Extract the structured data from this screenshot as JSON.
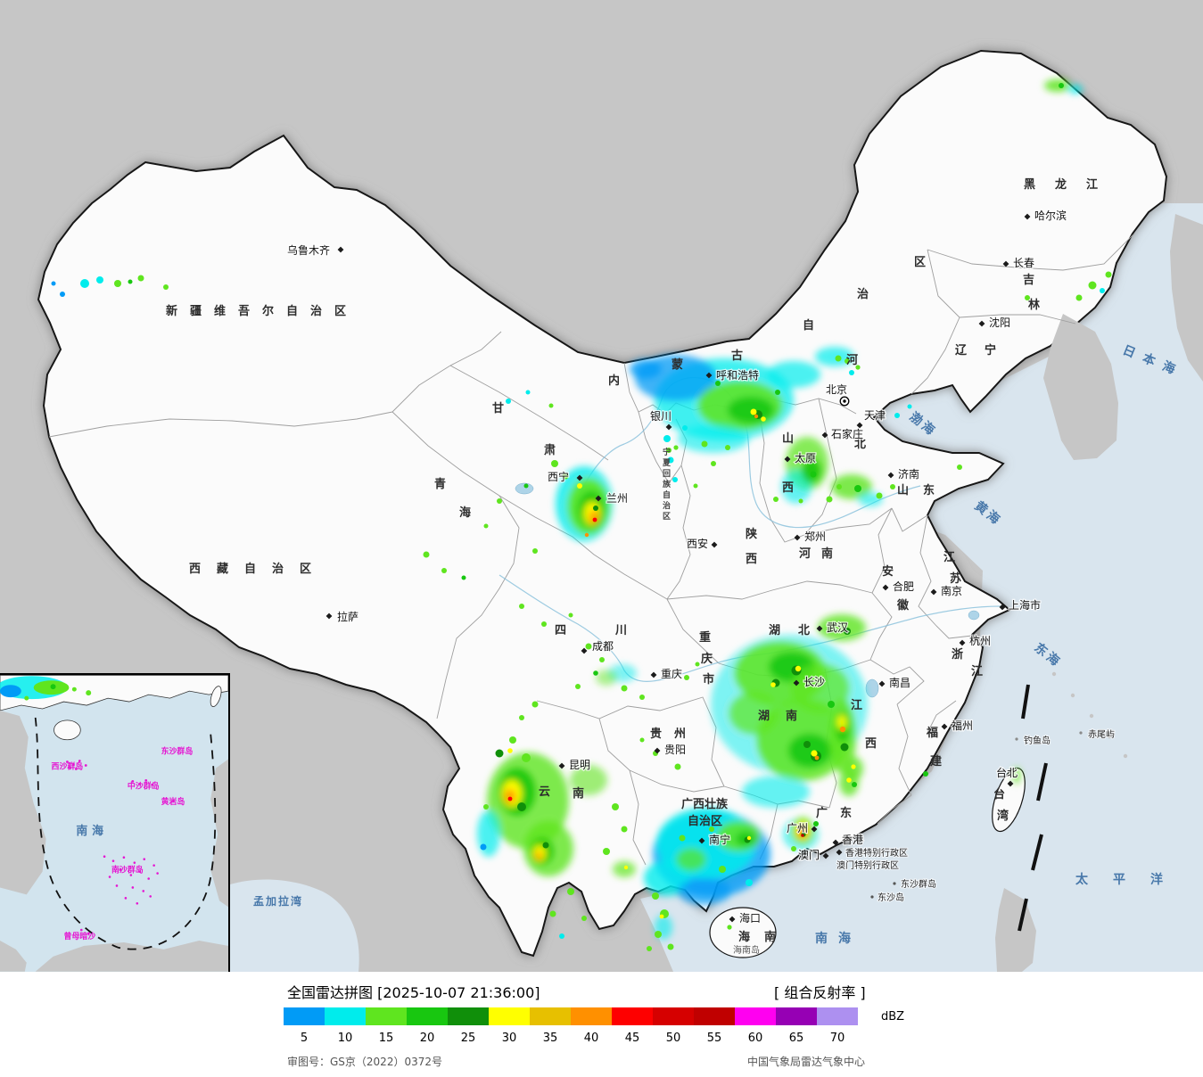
{
  "header": {
    "title": "全国雷达拼图 [2025-10-07 21:36:00]",
    "product": "[ 组合反射率 ]"
  },
  "legend": {
    "unit": "dBZ",
    "scale": [
      {
        "value": "5",
        "color": "#019bf6"
      },
      {
        "value": "10",
        "color": "#00ecec"
      },
      {
        "value": "15",
        "color": "#5fe51f"
      },
      {
        "value": "20",
        "color": "#18c710"
      },
      {
        "value": "25",
        "color": "#108f0a"
      },
      {
        "value": "30",
        "color": "#ffff00"
      },
      {
        "value": "35",
        "color": "#e7c000"
      },
      {
        "value": "40",
        "color": "#ff9000"
      },
      {
        "value": "45",
        "color": "#fe0000"
      },
      {
        "value": "50",
        "color": "#d60000"
      },
      {
        "value": "55",
        "color": "#c00000"
      },
      {
        "value": "60",
        "color": "#ff00f0"
      },
      {
        "value": "65",
        "color": "#9600b4"
      },
      {
        "value": "70",
        "color": "#ad90f0"
      }
    ]
  },
  "footer": {
    "approval": "审图号：GS京（2022）0372号",
    "agency": "中国气象局雷达气象中心"
  },
  "map": {
    "provinces": [
      {
        "name": "新疆维吾尔自治区"
      },
      {
        "name": "西藏自治区"
      },
      {
        "name": "青海",
        "chars": [
          "青",
          "海"
        ]
      },
      {
        "name": "甘肃",
        "chars": [
          "甘",
          "肃"
        ]
      },
      {
        "name": "宁夏回族自治区",
        "chars": [
          "宁",
          "夏",
          "回",
          "族",
          "自",
          "治",
          "区"
        ]
      },
      {
        "name": "内蒙古自治区",
        "chars": [
          "内",
          "蒙",
          "古",
          "自",
          "治",
          "区"
        ]
      },
      {
        "name": "黑龙江"
      },
      {
        "name": "吉林",
        "chars": [
          "吉",
          "林"
        ]
      },
      {
        "name": "辽宁"
      },
      {
        "name": "河北",
        "chars": [
          "河",
          "北"
        ]
      },
      {
        "name": "山西",
        "chars": [
          "山",
          "西"
        ]
      },
      {
        "name": "山东"
      },
      {
        "name": "河南"
      },
      {
        "name": "陕西",
        "chars": [
          "陕",
          "西"
        ]
      },
      {
        "name": "四川",
        "chars": [
          "四",
          "川"
        ]
      },
      {
        "name": "重庆市",
        "chars": [
          "重",
          "庆",
          "市"
        ]
      },
      {
        "name": "湖北"
      },
      {
        "name": "湖南"
      },
      {
        "name": "江西",
        "chars": [
          "江",
          "西"
        ]
      },
      {
        "name": "安徽",
        "chars": [
          "安",
          "徽"
        ]
      },
      {
        "name": "江苏",
        "chars": [
          "江",
          "苏"
        ]
      },
      {
        "name": "浙江",
        "chars": [
          "浙",
          "江"
        ]
      },
      {
        "name": "福建",
        "chars": [
          "福",
          "建"
        ]
      },
      {
        "name": "广东"
      },
      {
        "name": "广西壮族自治区",
        "lines": [
          "广西壮族",
          "自治区"
        ]
      },
      {
        "name": "贵州"
      },
      {
        "name": "云南",
        "chars": [
          "云",
          "南"
        ]
      },
      {
        "name": "海南"
      },
      {
        "name": "台湾",
        "chars": [
          "台",
          "湾"
        ]
      }
    ],
    "cities": [
      {
        "name": "乌鲁木齐"
      },
      {
        "name": "拉萨"
      },
      {
        "name": "西宁"
      },
      {
        "name": "兰州"
      },
      {
        "name": "银川"
      },
      {
        "name": "呼和浩特"
      },
      {
        "name": "北京"
      },
      {
        "name": "天津"
      },
      {
        "name": "石家庄"
      },
      {
        "name": "太原"
      },
      {
        "name": "沈阳"
      },
      {
        "name": "长春"
      },
      {
        "name": "哈尔滨"
      },
      {
        "name": "济南"
      },
      {
        "name": "郑州"
      },
      {
        "name": "西安"
      },
      {
        "name": "合肥"
      },
      {
        "name": "南京"
      },
      {
        "name": "上海市"
      },
      {
        "name": "杭州"
      },
      {
        "name": "武汉"
      },
      {
        "name": "成都"
      },
      {
        "name": "重庆"
      },
      {
        "name": "贵阳"
      },
      {
        "name": "昆明"
      },
      {
        "name": "南宁"
      },
      {
        "name": "广州"
      },
      {
        "name": "香港"
      },
      {
        "name": "澳门"
      },
      {
        "name": "福州"
      },
      {
        "name": "台北"
      },
      {
        "name": "南昌"
      },
      {
        "name": "长沙"
      },
      {
        "name": "海口"
      }
    ],
    "seas": {
      "japan": "日本海",
      "bohai": "渤海",
      "yellow": "黄海",
      "east": "东海",
      "south": "南海",
      "pacific": "太平洋",
      "bengal": "孟加拉湾"
    },
    "islands": {
      "hk_sar": "香港特别行政区",
      "mo_sar": "澳门特别行政区",
      "dongsha_qundao": "东沙群岛",
      "dongsha_dao": "东沙岛",
      "diaoyu": "钓鱼岛",
      "chiwei": "赤尾屿",
      "hainan_dao": "海南岛"
    },
    "inset": {
      "sea": "南海",
      "islands": {
        "dongsha": "东沙群岛",
        "xisha": "西沙群岛",
        "zhongsha": "中沙群岛",
        "huangyan": "黄岩岛",
        "nansha": "南沙群岛",
        "zengmu": "曾母暗沙"
      }
    }
  }
}
